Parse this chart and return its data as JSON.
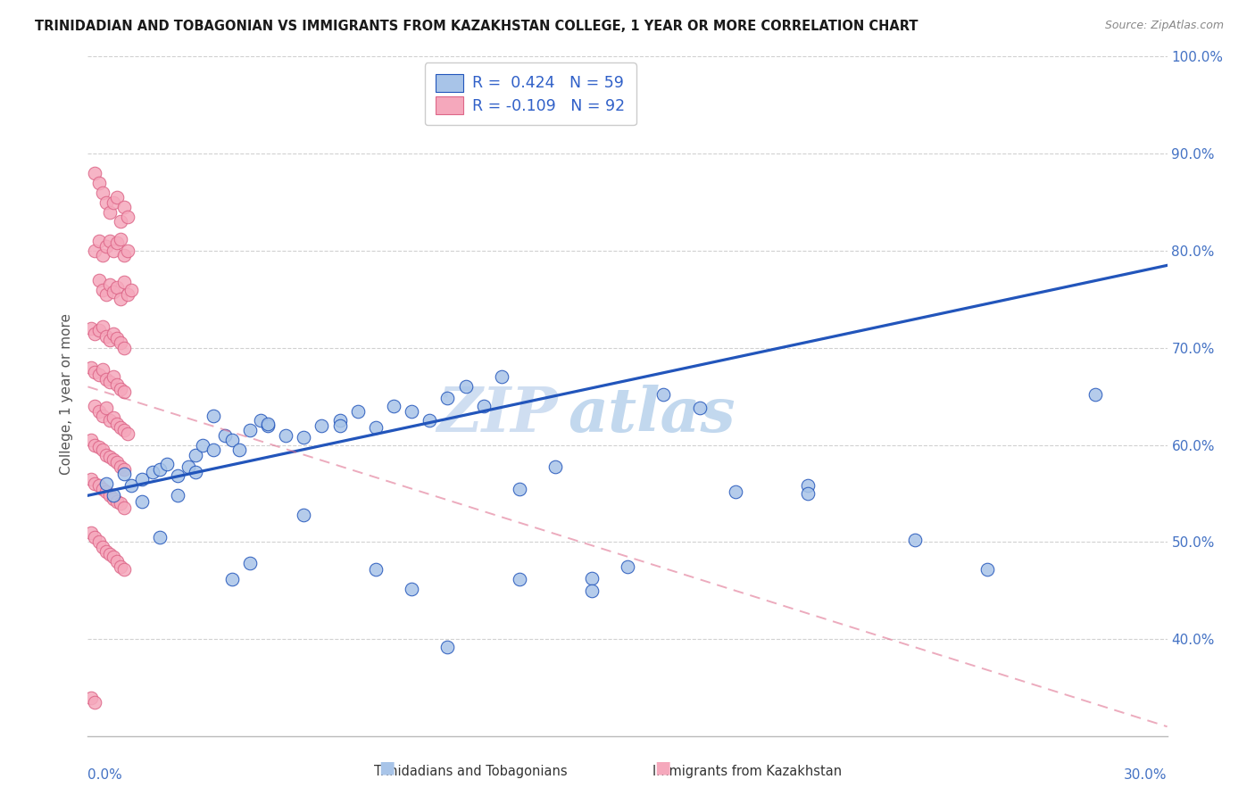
{
  "title": "TRINIDADIAN AND TOBAGONIAN VS IMMIGRANTS FROM KAZAKHSTAN COLLEGE, 1 YEAR OR MORE CORRELATION CHART",
  "source": "Source: ZipAtlas.com",
  "ylabel_label": "College, 1 year or more",
  "legend_blue_r": "R =  0.424",
  "legend_blue_n": "N = 59",
  "legend_pink_r": "R = -0.109",
  "legend_pink_n": "N = 92",
  "legend_blue_label": "Trinidadians and Tobagonians",
  "legend_pink_label": "Immigrants from Kazakhstan",
  "blue_color": "#a8c4e8",
  "pink_color": "#f5a8bc",
  "blue_line_color": "#2255bb",
  "pink_line_color": "#dd6688",
  "watermark_left": "ZIP",
  "watermark_right": "atlas",
  "xmin": 0.0,
  "xmax": 0.3,
  "ymin": 0.3,
  "ymax": 1.005,
  "ytick_vals": [
    0.4,
    0.5,
    0.6,
    0.7,
    0.8,
    0.9,
    1.0
  ],
  "ytick_labels": [
    "40.0%",
    "50.0%",
    "60.0%",
    "70.0%",
    "80.0%",
    "90.0%",
    "100.0%"
  ],
  "blue_scatter_x": [
    0.005,
    0.007,
    0.01,
    0.012,
    0.015,
    0.018,
    0.02,
    0.022,
    0.025,
    0.028,
    0.03,
    0.032,
    0.035,
    0.038,
    0.04,
    0.042,
    0.045,
    0.048,
    0.05,
    0.055,
    0.06,
    0.065,
    0.07,
    0.075,
    0.08,
    0.085,
    0.09,
    0.095,
    0.1,
    0.105,
    0.11,
    0.115,
    0.12,
    0.13,
    0.14,
    0.15,
    0.16,
    0.17,
    0.18,
    0.2,
    0.015,
    0.02,
    0.025,
    0.03,
    0.035,
    0.04,
    0.045,
    0.05,
    0.06,
    0.07,
    0.08,
    0.09,
    0.1,
    0.12,
    0.14,
    0.2,
    0.23,
    0.25,
    0.28
  ],
  "blue_scatter_y": [
    0.56,
    0.548,
    0.57,
    0.558,
    0.565,
    0.572,
    0.575,
    0.58,
    0.568,
    0.578,
    0.59,
    0.6,
    0.595,
    0.61,
    0.605,
    0.595,
    0.615,
    0.625,
    0.62,
    0.61,
    0.608,
    0.62,
    0.625,
    0.635,
    0.618,
    0.64,
    0.635,
    0.625,
    0.648,
    0.66,
    0.64,
    0.67,
    0.555,
    0.578,
    0.463,
    0.475,
    0.652,
    0.638,
    0.552,
    0.558,
    0.542,
    0.505,
    0.548,
    0.572,
    0.63,
    0.462,
    0.478,
    0.622,
    0.528,
    0.62,
    0.472,
    0.452,
    0.392,
    0.462,
    0.45,
    0.55,
    0.502,
    0.472,
    0.652
  ],
  "pink_scatter_x": [
    0.002,
    0.003,
    0.004,
    0.005,
    0.006,
    0.007,
    0.008,
    0.009,
    0.01,
    0.011,
    0.002,
    0.003,
    0.004,
    0.005,
    0.006,
    0.007,
    0.008,
    0.009,
    0.01,
    0.011,
    0.003,
    0.004,
    0.005,
    0.006,
    0.007,
    0.008,
    0.009,
    0.01,
    0.011,
    0.012,
    0.001,
    0.002,
    0.003,
    0.004,
    0.005,
    0.006,
    0.007,
    0.008,
    0.009,
    0.01,
    0.001,
    0.002,
    0.003,
    0.004,
    0.005,
    0.006,
    0.007,
    0.008,
    0.009,
    0.01,
    0.002,
    0.003,
    0.004,
    0.005,
    0.006,
    0.007,
    0.008,
    0.009,
    0.01,
    0.011,
    0.001,
    0.002,
    0.003,
    0.004,
    0.005,
    0.006,
    0.007,
    0.008,
    0.009,
    0.01,
    0.001,
    0.002,
    0.003,
    0.004,
    0.005,
    0.006,
    0.007,
    0.008,
    0.009,
    0.01,
    0.001,
    0.002,
    0.003,
    0.004,
    0.005,
    0.006,
    0.007,
    0.008,
    0.009,
    0.01,
    0.001,
    0.002
  ],
  "pink_scatter_y": [
    0.88,
    0.87,
    0.86,
    0.85,
    0.84,
    0.85,
    0.855,
    0.83,
    0.845,
    0.835,
    0.8,
    0.81,
    0.795,
    0.805,
    0.81,
    0.8,
    0.808,
    0.812,
    0.795,
    0.8,
    0.77,
    0.76,
    0.755,
    0.765,
    0.758,
    0.762,
    0.75,
    0.768,
    0.755,
    0.76,
    0.72,
    0.715,
    0.718,
    0.722,
    0.712,
    0.708,
    0.715,
    0.71,
    0.705,
    0.7,
    0.68,
    0.675,
    0.672,
    0.678,
    0.668,
    0.665,
    0.67,
    0.662,
    0.658,
    0.655,
    0.64,
    0.635,
    0.63,
    0.638,
    0.625,
    0.628,
    0.622,
    0.618,
    0.615,
    0.612,
    0.605,
    0.6,
    0.598,
    0.595,
    0.59,
    0.588,
    0.585,
    0.582,
    0.578,
    0.575,
    0.565,
    0.56,
    0.558,
    0.555,
    0.552,
    0.548,
    0.545,
    0.542,
    0.54,
    0.535,
    0.51,
    0.505,
    0.5,
    0.495,
    0.49,
    0.488,
    0.485,
    0.48,
    0.475,
    0.472,
    0.34,
    0.335
  ]
}
